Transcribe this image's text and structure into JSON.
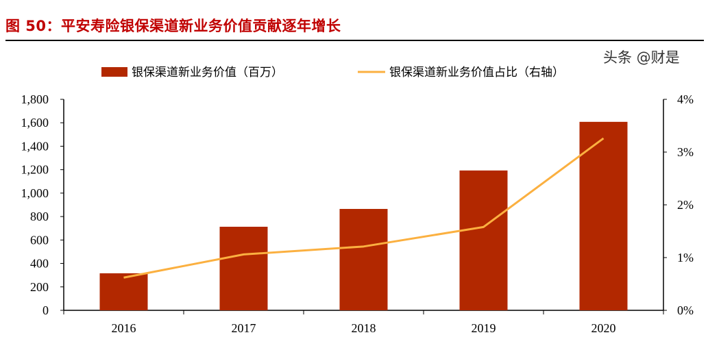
{
  "title": "图 50：平安寿险银保渠道新业务价值贡献逐年增长",
  "watermark": "头条 @财是",
  "chart_data": {
    "type": "bar+line",
    "categories": [
      "2016",
      "2017",
      "2018",
      "2019",
      "2020"
    ],
    "series": [
      {
        "name": "银保渠道新业务价值（百万）",
        "type": "bar",
        "axis": "left",
        "color": "#b22800",
        "values": [
          316,
          713,
          865,
          1193,
          1608
        ]
      },
      {
        "name": "银保渠道新业务价值占比（右轴）",
        "type": "line",
        "axis": "right",
        "color": "#fbb040",
        "values": [
          0.62,
          1.06,
          1.21,
          1.58,
          3.26
        ]
      }
    ],
    "left_axis": {
      "ylim": [
        0,
        1800
      ],
      "ticks": [
        "0",
        "200",
        "400",
        "600",
        "800",
        "1,000",
        "1,200",
        "1,400",
        "1,600",
        "1,800"
      ]
    },
    "right_axis": {
      "ylim": [
        0,
        4
      ],
      "unit": "%",
      "ticks": [
        "0%",
        "1%",
        "2%",
        "3%",
        "4%"
      ]
    },
    "grid": false,
    "legend_position": "top"
  }
}
